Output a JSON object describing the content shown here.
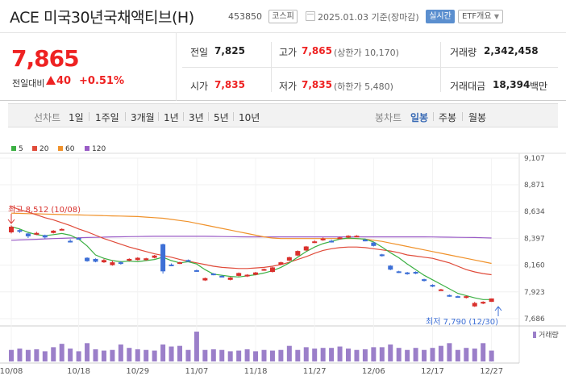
{
  "header": {
    "title": "ACE 미국30년국채액티브(H)",
    "code": "453850",
    "market": "코스피",
    "date": "2025.01.03  기준(장마감)",
    "realtime_label": "실시간",
    "etf_info_label": "ETF개요"
  },
  "price": {
    "current": "7,865",
    "change_label": "전일대비",
    "change_value": "40",
    "change_rate": "+0.51%"
  },
  "stats": {
    "prev_close_label": "전일",
    "prev_close": "7,825",
    "high_label": "고가",
    "high": "7,865",
    "upper_limit": "(상한가 10,170)",
    "volume_label": "거래량",
    "volume": "2,342,458",
    "open_label": "시가",
    "open": "7,835",
    "low_label": "저가",
    "low": "7,835",
    "lower_limit": "(하한가 5,480)",
    "amount_label": "거래대금",
    "amount": "18,394",
    "amount_unit": "백만"
  },
  "periods": {
    "line_chart_label": "선차트",
    "line_items": [
      "1일",
      "1주일",
      "3개월",
      "1년",
      "3년",
      "5년",
      "10년"
    ],
    "candle_chart_label": "봉차트",
    "candle_items": [
      "일봉",
      "주봉",
      "월봉"
    ],
    "active_candle": "일봉"
  },
  "legend": {
    "items": [
      {
        "label": "5",
        "color": "#3cb043"
      },
      {
        "label": "20",
        "color": "#e04b3a"
      },
      {
        "label": "60",
        "color": "#f0922b"
      },
      {
        "label": "120",
        "color": "#9a5cc6"
      }
    ]
  },
  "annotations": {
    "high": "최고 8,512 (10/08)",
    "low": "최저 7,790 (12/30)"
  },
  "volume_label": "거래량",
  "chart_data": {
    "type": "candlestick",
    "y_ticks": [
      "9,107",
      "8,871",
      "8,634",
      "8,397",
      "8,160",
      "7,923",
      "7,686"
    ],
    "ylim": [
      7686,
      9107
    ],
    "x_ticks": [
      "10/08",
      "10/18",
      "10/29",
      "11/07",
      "11/18",
      "11/27",
      "12/06",
      "12/17",
      "12/27"
    ],
    "up_color": "#d9302c",
    "down_color": "#3d6fd6",
    "candles": [
      {
        "o": 8450,
        "c": 8500,
        "h": 8512,
        "l": 8440
      },
      {
        "o": 8470,
        "c": 8455,
        "h": 8480,
        "l": 8445
      },
      {
        "o": 8440,
        "c": 8415,
        "h": 8445,
        "l": 8400
      },
      {
        "o": 8430,
        "c": 8445,
        "h": 8455,
        "l": 8425
      },
      {
        "o": 8425,
        "c": 8405,
        "h": 8430,
        "l": 8395
      },
      {
        "o": 8445,
        "c": 8465,
        "h": 8470,
        "l": 8440
      },
      {
        "o": 8475,
        "c": 8480,
        "h": 8485,
        "l": 8470
      },
      {
        "o": 8375,
        "c": 8370,
        "h": 8390,
        "l": 8360
      },
      {
        "o": 8400,
        "c": 8390,
        "h": 8405,
        "l": 8385
      },
      {
        "o": 8225,
        "c": 8195,
        "h": 8230,
        "l": 8190
      },
      {
        "o": 8215,
        "c": 8190,
        "h": 8220,
        "l": 8185
      },
      {
        "o": 8185,
        "c": 8205,
        "h": 8215,
        "l": 8180
      },
      {
        "o": 8160,
        "c": 8185,
        "h": 8200,
        "l": 8155
      },
      {
        "o": 8185,
        "c": 8175,
        "h": 8195,
        "l": 8165
      },
      {
        "o": 8200,
        "c": 8215,
        "h": 8220,
        "l": 8195
      },
      {
        "o": 8205,
        "c": 8225,
        "h": 8230,
        "l": 8200
      },
      {
        "o": 8205,
        "c": 8220,
        "h": 8225,
        "l": 8200
      },
      {
        "o": 8225,
        "c": 8245,
        "h": 8250,
        "l": 8220
      },
      {
        "o": 8345,
        "c": 8105,
        "h": 8350,
        "l": 8085
      },
      {
        "o": 8165,
        "c": 8155,
        "h": 8175,
        "l": 8150
      },
      {
        "o": 8175,
        "c": 8185,
        "h": 8190,
        "l": 8170
      },
      {
        "o": 8205,
        "c": 8195,
        "h": 8210,
        "l": 8190
      },
      {
        "o": 8115,
        "c": 8105,
        "h": 8120,
        "l": 8100
      },
      {
        "o": 8025,
        "c": 8045,
        "h": 8050,
        "l": 8020
      },
      {
        "o": 8085,
        "c": 8075,
        "h": 8090,
        "l": 8070
      },
      {
        "o": 8065,
        "c": 8060,
        "h": 8070,
        "l": 8055
      },
      {
        "o": 8030,
        "c": 8050,
        "h": 8055,
        "l": 8025
      },
      {
        "o": 8065,
        "c": 8090,
        "h": 8095,
        "l": 8060
      },
      {
        "o": 8060,
        "c": 8075,
        "h": 8080,
        "l": 8055
      },
      {
        "o": 8075,
        "c": 8095,
        "h": 8100,
        "l": 8070
      },
      {
        "o": 8115,
        "c": 8125,
        "h": 8130,
        "l": 8110
      },
      {
        "o": 8100,
        "c": 8140,
        "h": 8145,
        "l": 8095
      },
      {
        "o": 8165,
        "c": 8185,
        "h": 8190,
        "l": 8160
      },
      {
        "o": 8200,
        "c": 8230,
        "h": 8235,
        "l": 8195
      },
      {
        "o": 8245,
        "c": 8285,
        "h": 8290,
        "l": 8240
      },
      {
        "o": 8290,
        "c": 8325,
        "h": 8330,
        "l": 8285
      },
      {
        "o": 8360,
        "c": 8370,
        "h": 8380,
        "l": 8355
      },
      {
        "o": 8380,
        "c": 8395,
        "h": 8405,
        "l": 8375
      },
      {
        "o": 8375,
        "c": 8365,
        "h": 8385,
        "l": 8360
      },
      {
        "o": 8400,
        "c": 8405,
        "h": 8410,
        "l": 8395
      },
      {
        "o": 8405,
        "c": 8420,
        "h": 8425,
        "l": 8400
      },
      {
        "o": 8415,
        "c": 8420,
        "h": 8425,
        "l": 8410
      },
      {
        "o": 8385,
        "c": 8375,
        "h": 8395,
        "l": 8370
      },
      {
        "o": 8360,
        "c": 8330,
        "h": 8365,
        "l": 8325
      },
      {
        "o": 8255,
        "c": 8240,
        "h": 8260,
        "l": 8235
      },
      {
        "o": 8155,
        "c": 8120,
        "h": 8160,
        "l": 8115
      },
      {
        "o": 8105,
        "c": 8095,
        "h": 8110,
        "l": 8090
      },
      {
        "o": 8095,
        "c": 8080,
        "h": 8100,
        "l": 8075
      },
      {
        "o": 8100,
        "c": 8085,
        "h": 8105,
        "l": 8080
      },
      {
        "o": 8035,
        "c": 8020,
        "h": 8040,
        "l": 8015
      },
      {
        "o": 7985,
        "c": 7970,
        "h": 7990,
        "l": 7965
      },
      {
        "o": 7940,
        "c": 7945,
        "h": 7950,
        "l": 7935
      },
      {
        "o": 7895,
        "c": 7890,
        "h": 7900,
        "l": 7880
      },
      {
        "o": 7885,
        "c": 7880,
        "h": 7890,
        "l": 7875
      },
      {
        "o": 7870,
        "c": 7885,
        "h": 7890,
        "l": 7865
      },
      {
        "o": 7795,
        "c": 7825,
        "h": 7835,
        "l": 7790
      },
      {
        "o": 7820,
        "c": 7835,
        "h": 7840,
        "l": 7815
      },
      {
        "o": 7835,
        "c": 7865,
        "h": 7865,
        "l": 7835
      }
    ],
    "ma5": [
      8500,
      8480,
      8450,
      8430,
      8420,
      8430,
      8440,
      8425,
      8390,
      8330,
      8250,
      8220,
      8200,
      8190,
      8195,
      8190,
      8200,
      8210,
      8230,
      8200,
      8180,
      8190,
      8170,
      8120,
      8080,
      8070,
      8060,
      8055,
      8065,
      8075,
      8090,
      8110,
      8140,
      8180,
      8230,
      8280,
      8320,
      8350,
      8370,
      8390,
      8400,
      8395,
      8390,
      8365,
      8320,
      8270,
      8225,
      8170,
      8120,
      8070,
      8030,
      7990,
      7950,
      7910,
      7890,
      7870,
      7855,
      7855
    ],
    "ma20": [
      8680,
      8650,
      8630,
      8605,
      8580,
      8560,
      8535,
      8510,
      8480,
      8455,
      8425,
      8395,
      8370,
      8345,
      8320,
      8300,
      8280,
      8260,
      8245,
      8230,
      8210,
      8195,
      8180,
      8165,
      8150,
      8140,
      8135,
      8130,
      8130,
      8135,
      8140,
      8150,
      8165,
      8185,
      8210,
      8235,
      8265,
      8290,
      8305,
      8315,
      8320,
      8320,
      8315,
      8305,
      8295,
      8285,
      8270,
      8250,
      8240,
      8230,
      8220,
      8200,
      8180,
      8150,
      8120,
      8100,
      8085,
      8075
    ],
    "ma60": [
      8620,
      8618,
      8616,
      8614,
      8612,
      8610,
      8608,
      8606,
      8604,
      8602,
      8600,
      8598,
      8596,
      8594,
      8592,
      8590,
      8585,
      8580,
      8575,
      8565,
      8555,
      8545,
      8530,
      8515,
      8500,
      8485,
      8470,
      8455,
      8440,
      8425,
      8410,
      8400,
      8395,
      8395,
      8395,
      8395,
      8395,
      8395,
      8395,
      8395,
      8395,
      8395,
      8390,
      8380,
      8370,
      8355,
      8340,
      8325,
      8310,
      8295,
      8280,
      8265,
      8250,
      8235,
      8220,
      8205,
      8190,
      8175
    ],
    "ma120": [
      8380,
      8383,
      8386,
      8389,
      8392,
      8395,
      8397,
      8400,
      8402,
      8404,
      8406,
      8408,
      8410,
      8411,
      8412,
      8413,
      8414,
      8415,
      8415,
      8415,
      8415,
      8415,
      8415,
      8415,
      8414,
      8413,
      8412,
      8411,
      8410,
      8410,
      8410,
      8410,
      8410,
      8410,
      8410,
      8410,
      8410,
      8410,
      8410,
      8410,
      8410,
      8410,
      8410,
      8410,
      8410,
      8410,
      8410,
      8410,
      8410,
      8410,
      8409,
      8408,
      8407,
      8406,
      8405,
      8404,
      8402,
      8400
    ],
    "volume": [
      0.34,
      0.38,
      0.34,
      0.36,
      0.3,
      0.42,
      0.52,
      0.38,
      0.3,
      0.54,
      0.36,
      0.32,
      0.34,
      0.5,
      0.4,
      0.36,
      0.34,
      0.32,
      0.5,
      0.44,
      0.46,
      0.34,
      0.88,
      0.34,
      0.36,
      0.34,
      0.3,
      0.32,
      0.36,
      0.3,
      0.34,
      0.32,
      0.34,
      0.46,
      0.34,
      0.42,
      0.38,
      0.4,
      0.4,
      0.44,
      0.38,
      0.34,
      0.36,
      0.42,
      0.42,
      0.5,
      0.4,
      0.34,
      0.4,
      0.34,
      0.4,
      0.46,
      0.54,
      0.34,
      0.4,
      0.38,
      0.54,
      0.32
    ]
  }
}
